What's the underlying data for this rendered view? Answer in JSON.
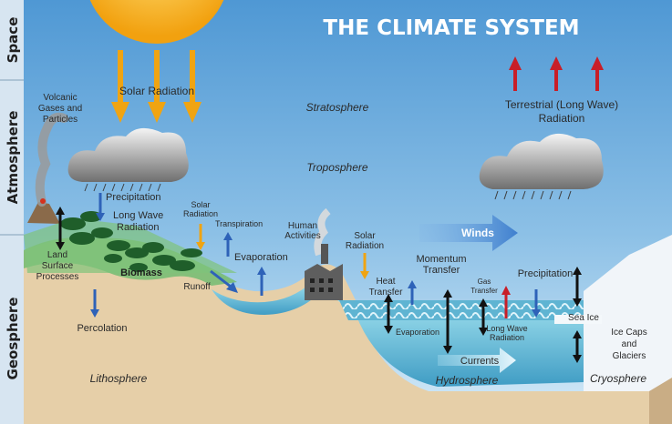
{
  "title": "THE CLIMATE SYSTEM",
  "bands": {
    "space": "Space",
    "atmosphere": "Atmosphere",
    "geosphere": "Geosphere"
  },
  "layers": {
    "stratosphere": "Stratosphere",
    "troposphere": "Troposphere",
    "lithosphere": "Lithosphere",
    "hydrosphere": "Hydrosphere",
    "cryosphere": "Cryosphere"
  },
  "labels": {
    "solar_radiation": "Solar Radiation",
    "terrestrial_1": "Terrestrial (Long Wave)",
    "terrestrial_2": "Radiation",
    "volcanic_1": "Volcanic",
    "volcanic_2": "Gases and",
    "volcanic_3": "Particles",
    "precipitation_left": "Precipitation",
    "long_wave_1": "Long Wave",
    "long_wave_2": "Radiation",
    "solar_small_1": "Solar",
    "solar_small_2": "Radiation",
    "transpiration": "Transpiration",
    "human_1": "Human",
    "human_2": "Activities",
    "solar_mid_1": "Solar",
    "solar_mid_2": "Radiation",
    "winds": "Winds",
    "land_1": "Land",
    "land_2": "Surface",
    "land_3": "Processes",
    "biomass": "Biomass",
    "evaporation_land": "Evaporation",
    "runoff": "Runoff",
    "percolation": "Percolation",
    "momentum_1": "Momentum",
    "momentum_2": "Transfer",
    "heat_1": "Heat",
    "heat_2": "Transfer",
    "gas_1": "Gas",
    "gas_2": "Transfer",
    "precipitation_right": "Precipitation",
    "evaporation_sea": "Evaporation",
    "long_wave_sea_1": "Long Wave",
    "long_wave_sea_2": "Radiation",
    "sea_ice": "Sea Ice",
    "ice_caps_1": "Ice Caps",
    "ice_caps_2": "and",
    "ice_caps_3": "Glaciers",
    "currents": "Currents"
  },
  "colors": {
    "sky_top": "#5aa0d8",
    "sky_bottom": "#cfe6f6",
    "title": "#ffffff",
    "sun": "#f6b21a",
    "solar_arrow": "#f0a412",
    "red_arrow": "#c81e28",
    "blue_arrow": "#2e62b8",
    "black_arrow": "#111111",
    "land": "#e8d2b0",
    "grass": "#7cc27c",
    "water": "#7cc8df",
    "ice": "#f2f6fa",
    "side_band": "#d8e6f2"
  }
}
